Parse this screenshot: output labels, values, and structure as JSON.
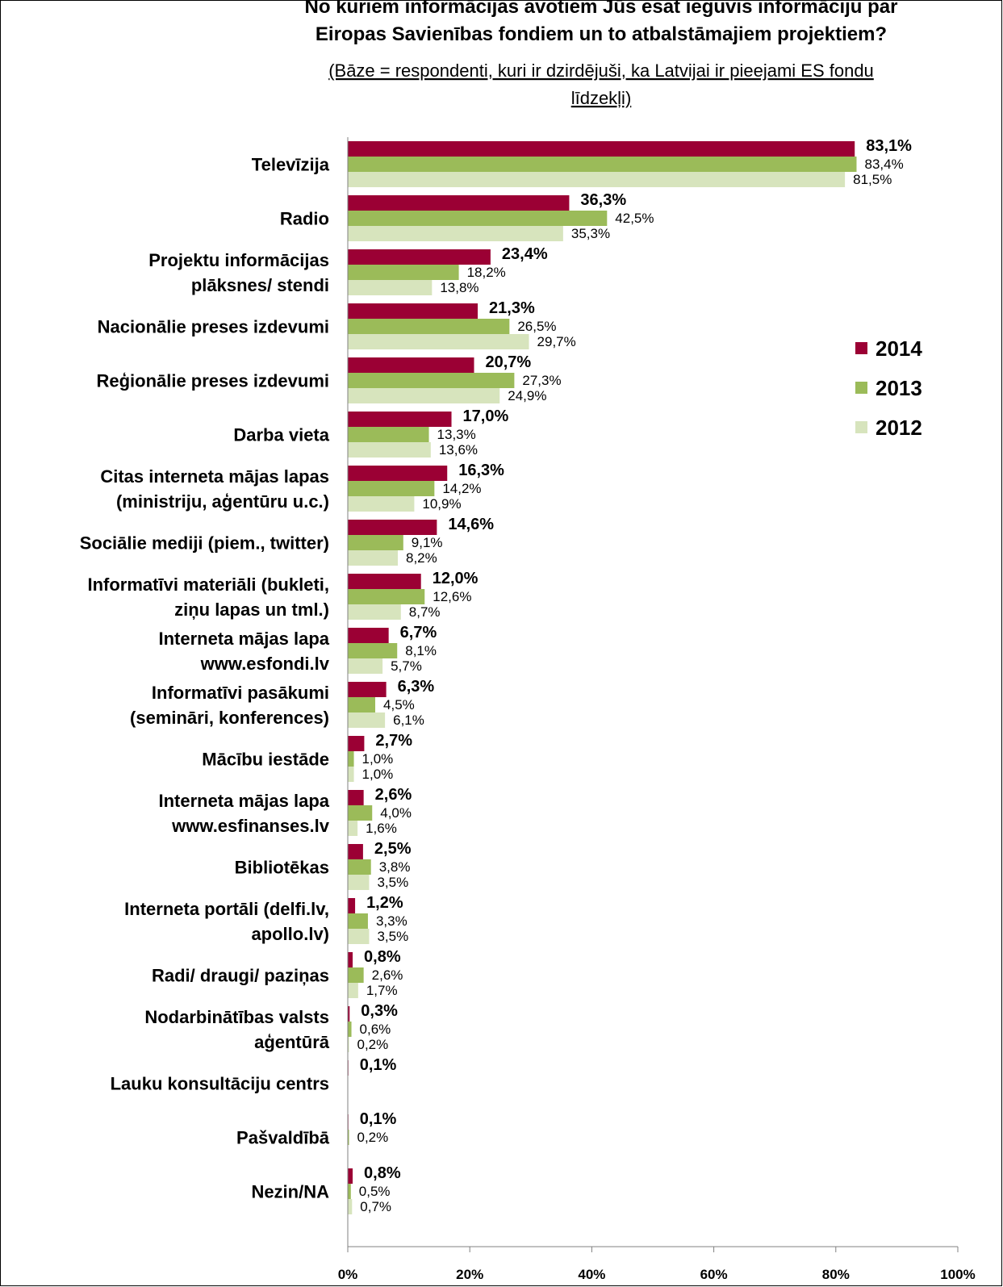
{
  "chart_data": {
    "type": "bar",
    "orientation": "horizontal",
    "title": "No kuriem informācijas avotiem Jūs esat ieguvis informāciju par\nEiropas Savienības fondiem un to atbalstāmajiem projektiem?",
    "subtitle": "(Bāze = respondenti, kuri ir dzirdējuši, ka Latvijai ir pieejami ES fondu\nlīdzekļi)",
    "categories": [
      "Televīzija",
      "Radio",
      "Projektu informācijas\nplāksnes/ stendi",
      "Nacionālie preses izdevumi",
      "Reģionālie preses izdevumi",
      "Darba vieta",
      "Citas interneta mājas lapas\n(ministriju, aģentūru u.c.)",
      "Sociālie mediji (piem., twitter)",
      "Informatīvi materiāli (bukleti,\nziņu lapas un tml.)",
      "Interneta mājas lapa\nwww.esfondi.lv",
      "Informatīvi pasākumi\n(semināri, konferences)",
      "Mācību iestāde",
      "Interneta mājas lapa\nwww.esfinanses.lv",
      "Bibliotēkas",
      "Interneta portāli (delfi.lv,\napollo.lv)",
      "Radi/ draugi/ paziņas",
      "Nodarbinātības valsts\naģentūrā",
      "Lauku konsultāciju centrs",
      "Pašvaldībā",
      "Nezin/NA"
    ],
    "series": [
      {
        "name": "2014",
        "color": "#9b0034",
        "values": [
          83.1,
          36.3,
          23.4,
          21.3,
          20.7,
          17.0,
          16.3,
          14.6,
          12.0,
          6.7,
          6.3,
          2.7,
          2.6,
          2.5,
          1.2,
          0.8,
          0.3,
          0.1,
          0.1,
          0.8
        ],
        "value_labels": [
          "83,1%",
          "36,3%",
          "23,4%",
          "21,3%",
          "20,7%",
          "17,0%",
          "16,3%",
          "14,6%",
          "12,0%",
          "6,7%",
          "6,3%",
          "2,7%",
          "2,6%",
          "2,5%",
          "1,2%",
          "0,8%",
          "0,3%",
          "0,1%",
          "0,1%",
          "0,8%"
        ]
      },
      {
        "name": "2013",
        "color": "#9bbb59",
        "values": [
          83.4,
          42.5,
          18.2,
          26.5,
          27.3,
          13.3,
          14.2,
          9.1,
          12.6,
          8.1,
          4.5,
          1.0,
          4.0,
          3.8,
          3.3,
          2.6,
          0.6,
          null,
          0.2,
          0.5
        ],
        "value_labels": [
          "83,4%",
          "42,5%",
          "18,2%",
          "26,5%",
          "27,3%",
          "13,3%",
          "14,2%",
          "9,1%",
          "12,6%",
          "8,1%",
          "4,5%",
          "1,0%",
          "4,0%",
          "3,8%",
          "3,3%",
          "2,6%",
          "0,6%",
          null,
          "0,2%",
          "0,5%"
        ]
      },
      {
        "name": "2012",
        "color": "#d7e4bd",
        "values": [
          81.5,
          35.3,
          13.8,
          29.7,
          24.9,
          13.6,
          10.9,
          8.2,
          8.7,
          5.7,
          6.1,
          1.0,
          1.6,
          3.5,
          3.5,
          1.7,
          0.2,
          null,
          null,
          0.7
        ],
        "value_labels": [
          "81,5%",
          "35,3%",
          "13,8%",
          "29,7%",
          "24,9%",
          "13,6%",
          "10,9%",
          "8,2%",
          "8,7%",
          "5,7%",
          "6,1%",
          "1,0%",
          "1,6%",
          "3,5%",
          "3,5%",
          "1,7%",
          "0,2%",
          null,
          null,
          "0,7%"
        ]
      }
    ],
    "xlim": [
      0,
      100
    ],
    "xticks": [
      {
        "value": 0,
        "label": "0%"
      },
      {
        "value": 20,
        "label": "20%"
      },
      {
        "value": 40,
        "label": "40%"
      },
      {
        "value": 60,
        "label": "60%"
      },
      {
        "value": 80,
        "label": "80%"
      },
      {
        "value": 100,
        "label": "100%"
      }
    ],
    "legend": "right",
    "grid": false
  }
}
